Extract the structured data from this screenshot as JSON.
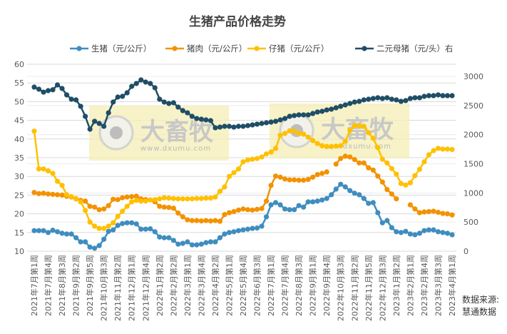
{
  "chart_data": {
    "type": "line",
    "title": "生猪产品价格走势",
    "xlabel": "",
    "ylabel": "",
    "ylim": [
      10,
      60
    ],
    "yticks": [
      "60",
      "55",
      "50",
      "45",
      "40",
      "35",
      "30",
      "25",
      "20",
      "15",
      "10"
    ],
    "y2lim": [
      0,
      3200
    ],
    "y2ticks": [
      "3000",
      "2500",
      "2000",
      "1500",
      "1000",
      "500",
      "0"
    ],
    "grid": true,
    "legend_position": "top",
    "x_tick_labels": [
      "2021年7月第1周",
      "2021年7月第4周",
      "2021年8月第3周",
      "2021年9月第2周",
      "2021年9月第5周",
      "2021年10月第3周",
      "2021年11月第2周",
      "2021年12月第1周",
      "2021年12月第4周",
      "2022年1月第2周",
      "2022年2月第2周",
      "2022年3月第1周",
      "2022年3月第4周",
      "2022年4月第2周",
      "2022年5月第1周",
      "2022年5月第4周",
      "2022年6月第3周",
      "2022年7月第1周",
      "2022年7月第4周",
      "2022年8月第3周",
      "2022年9月第1周",
      "2022年9月第4周",
      "2022年10月第3周",
      "2022年11月第2周",
      "2022年11月第5周",
      "2022年12月第3周",
      "2023年1月第2周",
      "2023年2月第1周",
      "2023年2月第4周",
      "2023年3月第3周",
      "2023年4月第1周"
    ],
    "x_points_per_tick": 3,
    "series": [
      {
        "name": "生猪（元/公斤）",
        "axis": "left",
        "color": "#3F8DBF",
        "values": [
          15.5,
          15.5,
          15.5,
          15.0,
          15.6,
          15.2,
          14.8,
          14.6,
          14.6,
          13.6,
          12.5,
          12.5,
          11.1,
          10.8,
          11.5,
          13.2,
          15.3,
          15.7,
          16.9,
          17.4,
          17.6,
          17.6,
          17.3,
          15.9,
          15.9,
          16.0,
          15.2,
          13.8,
          13.6,
          13.6,
          12.9,
          11.9,
          12.1,
          12.5,
          11.7,
          11.7,
          11.9,
          12.3,
          12.5,
          12.5,
          13.6,
          14.6,
          15.0,
          15.2,
          15.5,
          15.7,
          15.9,
          16.1,
          16.2,
          16.7,
          19.2,
          22.4,
          23.0,
          22.4,
          21.3,
          21.1,
          21.1,
          22.2,
          21.8,
          23.2,
          23.2,
          23.4,
          23.7,
          24.1,
          25.1,
          26.6,
          27.9,
          27.2,
          26.2,
          25.5,
          25.1,
          24.1,
          22.8,
          23.0,
          20.3,
          17.6,
          18.2,
          16.3,
          15.2,
          15.0,
          15.3,
          14.6,
          14.4,
          14.8,
          15.5,
          15.7,
          15.7,
          15.2,
          15.0,
          14.8,
          14.4
        ]
      },
      {
        "name": "猪肉（元/公斤）",
        "axis": "left",
        "color": "#F39200",
        "values": [
          25.7,
          25.4,
          25.5,
          25.3,
          25.2,
          25.1,
          25.0,
          24.7,
          24.5,
          24.0,
          23.6,
          23.4,
          22.0,
          21.8,
          21.1,
          21.3,
          22.2,
          23.9,
          23.8,
          24.3,
          24.5,
          24.6,
          24.7,
          24.0,
          23.8,
          23.7,
          23.2,
          22.0,
          21.8,
          21.7,
          21.5,
          20.2,
          19.2,
          18.4,
          18.2,
          18.2,
          18.1,
          18.2,
          18.1,
          18.2,
          18.0,
          19.8,
          20.3,
          20.6,
          21.0,
          21.3,
          21.1,
          21.0,
          21.2,
          21.4,
          23.4,
          27.6,
          30.1,
          29.8,
          29.3,
          29.1,
          29.1,
          29.0,
          29.0,
          29.2,
          29.8,
          30.5,
          30.8,
          31.2,
          null,
          33.3,
          34.8,
          35.4,
          35.2,
          34.5,
          33.6,
          33.6,
          32.3,
          31.7,
          30.1,
          28.5,
          26.5,
          25.3,
          24.0,
          null,
          null,
          22.4,
          21.3,
          20.3,
          20.5,
          20.6,
          20.7,
          20.4,
          20.1,
          20.0,
          19.7
        ]
      },
      {
        "name": "仔猪（元/公斤）",
        "axis": "left",
        "color": "#FFC000",
        "values": [
          42.1,
          32.0,
          32.0,
          31.5,
          30.8,
          28.7,
          27.6,
          25.1,
          24.6,
          24.1,
          23.2,
          20.9,
          17.8,
          16.7,
          16.1,
          16.1,
          16.7,
          17.6,
          19.3,
          20.7,
          22.0,
          23.2,
          23.6,
          23.4,
          23.4,
          23.7,
          23.8,
          24.0,
          24.3,
          24.2,
          24.1,
          24.0,
          24.0,
          24.0,
          24.0,
          24.1,
          24.1,
          24.2,
          24.2,
          24.5,
          26.0,
          27.2,
          30.0,
          31.0,
          32.0,
          33.9,
          34.4,
          34.6,
          34.8,
          35.2,
          36.0,
          36.5,
          37.5,
          41.0,
          41.5,
          42.2,
          42.1,
          41.5,
          41.3,
          40.5,
          39.6,
          38.8,
          38.2,
          38.0,
          38.0,
          38.1,
          38.2,
          39.4,
          42.3,
          43.6,
          43.5,
          43.4,
          41.7,
          40.2,
          37.7,
          34.6,
          33.6,
          32.1,
          30.6,
          28.1,
          27.7,
          28.3,
          30.2,
          31.9,
          33.9,
          35.8,
          36.9,
          37.5,
          37.3,
          37.3,
          37.2
        ]
      },
      {
        "name": "二元母猪（元/头）右",
        "axis": "right",
        "color": "#1F4E66",
        "values": [
          2816,
          2780,
          2730,
          2755,
          2770,
          2853,
          2792,
          2682,
          2608,
          2596,
          2486,
          2314,
          2094,
          2229,
          2192,
          2143,
          2375,
          2559,
          2645,
          2657,
          2718,
          2829,
          2878,
          2939,
          2902,
          2878,
          2804,
          2608,
          2559,
          2535,
          2547,
          2473,
          2412,
          2375,
          2314,
          2277,
          2265,
          2253,
          2241,
          2118,
          2130,
          2143,
          2143,
          2130,
          2143,
          2143,
          2155,
          2167,
          2180,
          2192,
          2204,
          2216,
          2229,
          2253,
          2277,
          2314,
          2327,
          2339,
          2339,
          2339,
          2363,
          2388,
          2400,
          2424,
          2437,
          2461,
          2486,
          2510,
          2535,
          2559,
          2571,
          2596,
          2608,
          2620,
          2633,
          2620,
          2633,
          2608,
          2596,
          2571,
          2584,
          2620,
          2633,
          2633,
          2657,
          2669,
          2669,
          2682,
          2669,
          2669,
          2669
        ]
      }
    ]
  },
  "source": {
    "line1": "数据来源:",
    "line2": "慧通数据"
  },
  "watermark": {
    "brand": "大畜牧",
    "url": "www.dxumu.com"
  }
}
